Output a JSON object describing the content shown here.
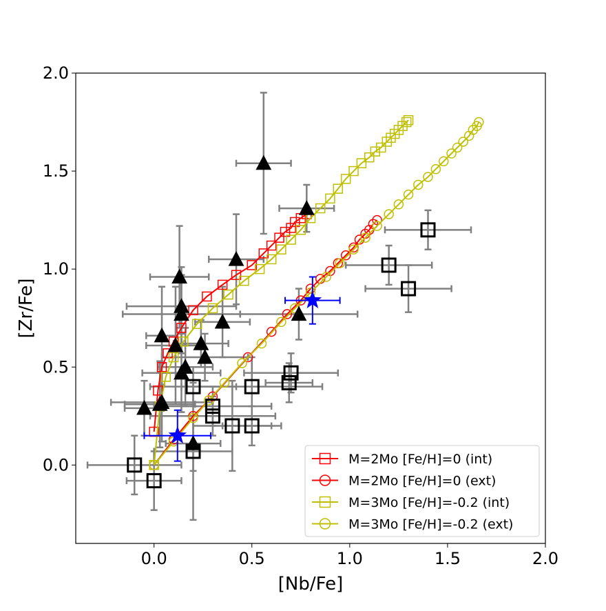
{
  "chart_data": {
    "type": "scatter",
    "title": "",
    "xlabel": "[Nb/Fe]",
    "ylabel": "[Zr/Fe]",
    "xlim": [
      -0.4,
      2.0
    ],
    "ylim": [
      -0.4,
      2.0
    ],
    "xticks": [
      0.0,
      0.5,
      1.0,
      1.5,
      2.0
    ],
    "yticks": [
      0.0,
      0.5,
      1.0,
      1.5,
      2.0
    ],
    "tick_labels_x": [
      "0.0",
      "0.5",
      "1.0",
      "1.5",
      "2.0"
    ],
    "tick_labels_y": [
      "0.0",
      "0.5",
      "1.0",
      "1.5",
      "2.0"
    ],
    "grid": false,
    "legend_position": "bottom-right",
    "colors": {
      "red": "#ff0000",
      "olive": "#bfbf00",
      "blue": "#0000ff",
      "errorbar": "#808080",
      "black": "#000000"
    },
    "series": [
      {
        "name": "M=2Mo [Fe/H]=0 (int)",
        "kind": "model",
        "color": "#ff0000",
        "marker": "square",
        "x": [
          0.0,
          0.02,
          0.04,
          0.07,
          0.1,
          0.14,
          0.2,
          0.27,
          0.35,
          0.42,
          0.5,
          0.56,
          0.6,
          0.64,
          0.67,
          0.7,
          0.72,
          0.75,
          0.78
        ],
        "y": [
          0.17,
          0.38,
          0.5,
          0.57,
          0.63,
          0.7,
          0.79,
          0.86,
          0.92,
          0.97,
          1.02,
          1.08,
          1.12,
          1.16,
          1.19,
          1.21,
          1.24,
          1.26,
          1.28
        ]
      },
      {
        "name": "M=2Mo [Fe/H]=0 (ext)",
        "kind": "model",
        "color": "#ff0000",
        "marker": "circle",
        "x": [
          0.0,
          0.1,
          0.2,
          0.3,
          0.48,
          0.6,
          0.68,
          0.75,
          0.8,
          0.85,
          0.9,
          0.94,
          0.98,
          1.02,
          1.05,
          1.08,
          1.1,
          1.12,
          1.14
        ],
        "y": [
          0.0,
          0.13,
          0.25,
          0.35,
          0.55,
          0.68,
          0.77,
          0.84,
          0.9,
          0.95,
          0.99,
          1.03,
          1.07,
          1.11,
          1.15,
          1.18,
          1.2,
          1.23,
          1.25
        ]
      },
      {
        "name": "M=3Mo [Fe/H]=-0.2 (int)",
        "kind": "model",
        "color": "#bfbf00",
        "marker": "square",
        "x": [
          0.0,
          0.03,
          0.06,
          0.1,
          0.15,
          0.22,
          0.3,
          0.38,
          0.46,
          0.54,
          0.6,
          0.65,
          0.7,
          0.75,
          0.8,
          0.85,
          0.9,
          0.94,
          0.98,
          1.02,
          1.06,
          1.1,
          1.13,
          1.16,
          1.19,
          1.21,
          1.23,
          1.25,
          1.27,
          1.29,
          1.3
        ],
        "y": [
          0.0,
          0.3,
          0.45,
          0.55,
          0.63,
          0.72,
          0.8,
          0.87,
          0.94,
          1.0,
          1.05,
          1.1,
          1.15,
          1.2,
          1.26,
          1.31,
          1.36,
          1.41,
          1.46,
          1.5,
          1.54,
          1.57,
          1.6,
          1.62,
          1.65,
          1.67,
          1.69,
          1.71,
          1.73,
          1.75,
          1.76
        ]
      },
      {
        "name": "M=3Mo [Fe/H]=-0.2 (ext)",
        "kind": "model",
        "color": "#bfbf00",
        "marker": "circle",
        "x": [
          0.0,
          0.1,
          0.2,
          0.28,
          0.36,
          0.45,
          0.55,
          0.65,
          0.72,
          0.8,
          0.88,
          0.95,
          1.02,
          1.08,
          1.14,
          1.2,
          1.25,
          1.3,
          1.35,
          1.4,
          1.44,
          1.48,
          1.52,
          1.55,
          1.58,
          1.61,
          1.63,
          1.65,
          1.66
        ],
        "y": [
          0.0,
          0.12,
          0.24,
          0.33,
          0.42,
          0.52,
          0.62,
          0.73,
          0.8,
          0.88,
          0.96,
          1.03,
          1.1,
          1.16,
          1.22,
          1.28,
          1.33,
          1.38,
          1.43,
          1.47,
          1.51,
          1.55,
          1.59,
          1.62,
          1.65,
          1.68,
          1.71,
          1.73,
          1.75
        ]
      }
    ],
    "observed_triangles": {
      "marker": "triangle",
      "color": "#000000",
      "points": [
        {
          "x": 0.56,
          "y": 1.54,
          "xerr": 0.14,
          "yerr": 0.36
        },
        {
          "x": 0.78,
          "y": 1.31,
          "xerr": 0.14,
          "yerr": 0.12
        },
        {
          "x": 0.13,
          "y": 0.96,
          "xerr": 0.15,
          "yerr": 0.26
        },
        {
          "x": 0.42,
          "y": 1.05,
          "xerr": 0.14,
          "yerr": 0.23
        },
        {
          "x": 0.14,
          "y": 0.81,
          "xerr": 0.28,
          "yerr": 0.2
        },
        {
          "x": 0.14,
          "y": 0.77,
          "xerr": 0.3,
          "yerr": 0.2
        },
        {
          "x": 0.35,
          "y": 0.73,
          "xerr": 0.14,
          "yerr": 0.18
        },
        {
          "x": 0.74,
          "y": 0.77,
          "xerr": 0.3,
          "yerr": 0.13
        },
        {
          "x": 0.04,
          "y": 0.66,
          "xerr": 0.08,
          "yerr": 0.25
        },
        {
          "x": 0.11,
          "y": 0.61,
          "xerr": 0.15,
          "yerr": 0.3
        },
        {
          "x": 0.24,
          "y": 0.62,
          "xerr": 0.14,
          "yerr": 0.12
        },
        {
          "x": 0.26,
          "y": 0.55,
          "xerr": 0.22,
          "yerr": 0.12
        },
        {
          "x": 0.16,
          "y": 0.5,
          "xerr": 0.14,
          "yerr": 0.2
        },
        {
          "x": 0.14,
          "y": 0.47,
          "xerr": 0.2,
          "yerr": 0.2
        },
        {
          "x": 0.04,
          "y": 0.32,
          "xerr": 0.26,
          "yerr": 0.2
        },
        {
          "x": 0.03,
          "y": 0.31,
          "xerr": 0.18,
          "yerr": 0.22
        },
        {
          "x": -0.05,
          "y": 0.29,
          "xerr": 0.1,
          "yerr": 0.14
        },
        {
          "x": 0.2,
          "y": 0.11,
          "xerr": 0.14,
          "yerr": 0.14
        }
      ]
    },
    "observed_squares": {
      "marker": "open-square",
      "color": "#000000",
      "points": [
        {
          "x": 1.4,
          "y": 1.2,
          "xerr": 0.22,
          "yerr": 0.1
        },
        {
          "x": 1.2,
          "y": 1.02,
          "xerr": 0.22,
          "yerr": 0.1
        },
        {
          "x": 1.3,
          "y": 0.9,
          "xerr": 0.22,
          "yerr": 0.12
        },
        {
          "x": 0.7,
          "y": 0.47,
          "xerr": 0.24,
          "yerr": 0.1
        },
        {
          "x": 0.69,
          "y": 0.42,
          "xerr": 0.12,
          "yerr": 0.1
        },
        {
          "x": 0.5,
          "y": 0.4,
          "xerr": 0.36,
          "yerr": 0.15
        },
        {
          "x": 0.2,
          "y": 0.4,
          "xerr": 0.22,
          "yerr": 0.1
        },
        {
          "x": 0.3,
          "y": 0.3,
          "xerr": 0.3,
          "yerr": 0.1
        },
        {
          "x": 0.3,
          "y": 0.25,
          "xerr": 0.32,
          "yerr": 0.1
        },
        {
          "x": 0.4,
          "y": 0.2,
          "xerr": 0.2,
          "yerr": 0.23
        },
        {
          "x": 0.5,
          "y": 0.2,
          "xerr": 0.15,
          "yerr": 0.1
        },
        {
          "x": 0.2,
          "y": 0.07,
          "xerr": 0.2,
          "yerr": 0.35
        },
        {
          "x": -0.1,
          "y": 0.0,
          "xerr": 0.24,
          "yerr": 0.15
        },
        {
          "x": 0.0,
          "y": -0.08,
          "xerr": 0.14,
          "yerr": 0.15
        }
      ]
    },
    "observed_stars": {
      "marker": "star",
      "color": "#0000ff",
      "points": [
        {
          "x": 0.81,
          "y": 0.84,
          "xerr": 0.14,
          "yerr": 0.12
        },
        {
          "x": 0.12,
          "y": 0.15,
          "xerr": 0.17,
          "yerr": 0.13
        }
      ]
    }
  }
}
